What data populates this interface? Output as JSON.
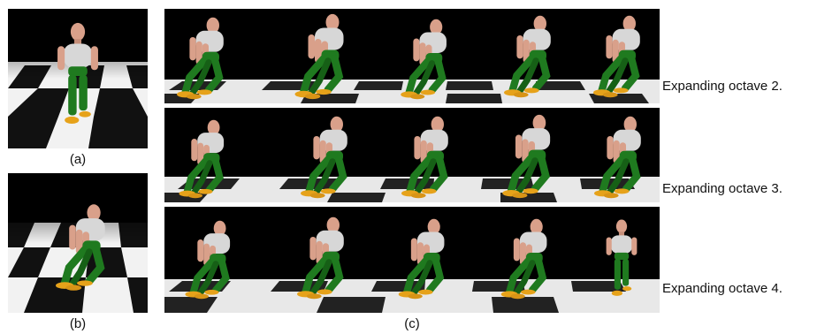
{
  "figure": {
    "captions": {
      "a": "(a)",
      "b": "(b)",
      "c": "(c)"
    },
    "rows": [
      {
        "label": "Expanding octave 2."
      },
      {
        "label": "Expanding octave 3."
      },
      {
        "label": "Expanding octave 4."
      }
    ]
  },
  "colors": {
    "background": "#000000",
    "floor_light": "#f2f2f2",
    "floor_dark": "#111111",
    "torso": "#d7d7d7",
    "skin": "#d9a08a",
    "legs": "#1f7a1f",
    "feet": "#e6a21a"
  }
}
